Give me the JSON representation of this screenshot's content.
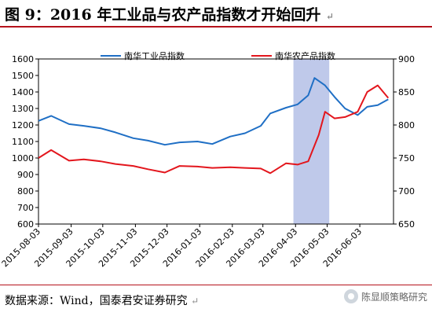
{
  "figure": {
    "title": "图 9：2016 年工业品与农产品指数才开始回升",
    "title_mark": "↵",
    "source": "数据来源：Wind，国泰君安证券研究",
    "source_mark": "↵",
    "watermark": "陈显顺策略研究",
    "watermark_icon": "wechat-logo-icon",
    "accent_color": "#b5121b"
  },
  "chart_data": {
    "type": "line",
    "x_ticks": [
      "2015-08-03",
      "2015-09-03",
      "2015-10-03",
      "2015-11-03",
      "2015-12-03",
      "2016-01-03",
      "2016-02-03",
      "2016-03-03",
      "2016-04-03",
      "2016-05-03",
      "2016-06-03"
    ],
    "ylim_left": [
      600,
      1600
    ],
    "yticks_left": [
      600,
      700,
      800,
      900,
      1000,
      1100,
      1200,
      1300,
      1400,
      1500,
      1600
    ],
    "ylim_right": [
      650,
      900
    ],
    "yticks_right": [
      650,
      700,
      750,
      800,
      850,
      900
    ],
    "grid": false,
    "legend_position": "top",
    "highlight_region": {
      "x_from": "2016-04-01",
      "x_to": "2016-05-05",
      "color": "#b4c0e6"
    },
    "series": [
      {
        "name": "南华工业品指数",
        "axis": "left",
        "color": "#1f6fc5",
        "x": [
          "2015-08-03",
          "2015-08-15",
          "2015-09-01",
          "2015-09-15",
          "2015-10-01",
          "2015-10-15",
          "2015-11-01",
          "2015-11-15",
          "2015-12-01",
          "2015-12-15",
          "2016-01-01",
          "2016-01-15",
          "2016-02-01",
          "2016-02-15",
          "2016-03-01",
          "2016-03-10",
          "2016-03-25",
          "2016-04-05",
          "2016-04-15",
          "2016-04-21",
          "2016-05-01",
          "2016-05-10",
          "2016-05-20",
          "2016-06-01",
          "2016-06-10",
          "2016-06-20",
          "2016-06-30"
        ],
        "values": [
          1225,
          1255,
          1205,
          1195,
          1180,
          1155,
          1120,
          1105,
          1080,
          1095,
          1100,
          1085,
          1130,
          1150,
          1195,
          1270,
          1305,
          1325,
          1380,
          1485,
          1440,
          1370,
          1300,
          1260,
          1310,
          1320,
          1355
        ]
      },
      {
        "name": "南华农产品指数",
        "axis": "right",
        "color": "#e3161d",
        "x": [
          "2015-08-03",
          "2015-08-15",
          "2015-09-01",
          "2015-09-15",
          "2015-10-01",
          "2015-10-15",
          "2015-11-01",
          "2015-11-15",
          "2015-12-01",
          "2015-12-15",
          "2016-01-01",
          "2016-01-15",
          "2016-02-01",
          "2016-02-15",
          "2016-03-01",
          "2016-03-10",
          "2016-03-25",
          "2016-04-05",
          "2016-04-15",
          "2016-04-25",
          "2016-05-01",
          "2016-05-10",
          "2016-05-20",
          "2016-06-01",
          "2016-06-10",
          "2016-06-20",
          "2016-06-30"
        ],
        "values": [
          750,
          762,
          746,
          748,
          745,
          741,
          738,
          733,
          728,
          738,
          737,
          735,
          736,
          735,
          734,
          727,
          742,
          740,
          745,
          785,
          820,
          810,
          812,
          820,
          850,
          860,
          841
        ]
      }
    ]
  }
}
